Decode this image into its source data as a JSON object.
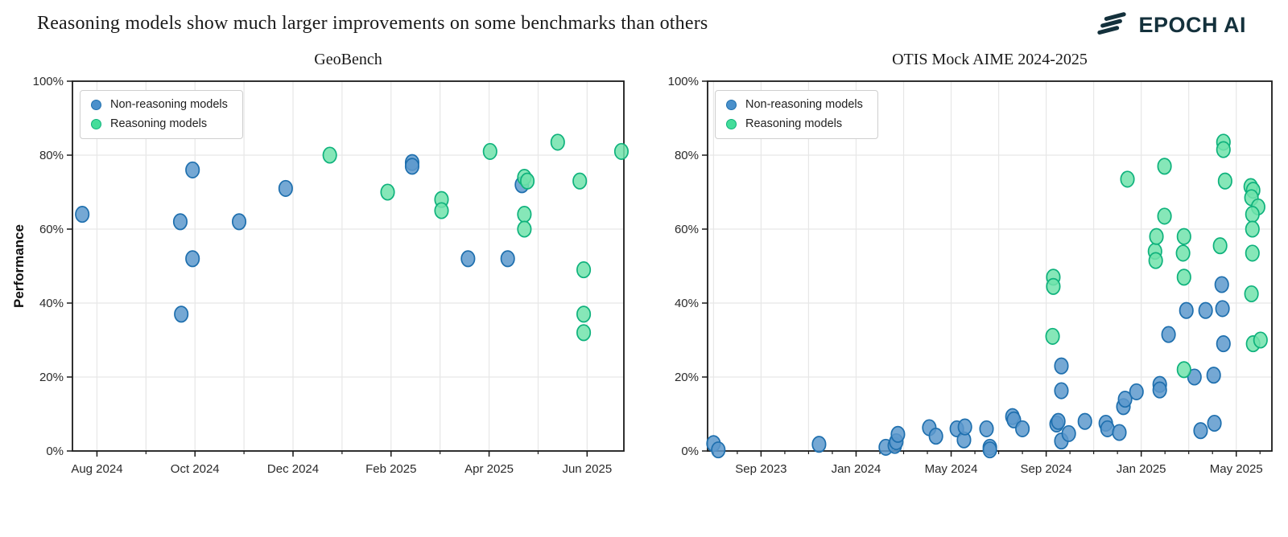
{
  "header": {
    "title": "Reasoning models show much larger improvements on some benchmarks than others",
    "logo_text": "EPOCH AI",
    "logo_icon": "epoch-slashes-icon",
    "logo_color": "#14313c"
  },
  "legend": {
    "non_reasoning_label": "Non-reasoning models",
    "reasoning_label": "Reasoning models"
  },
  "colors": {
    "non_reasoning_fill": "#5d99cd",
    "non_reasoning_edge": "#1e6fae",
    "reasoning_fill": "#71e3ab",
    "reasoning_edge": "#0eb27c",
    "legend_non_reasoning_dot": "#4a90cb",
    "legend_reasoning_dot": "#44dd9a",
    "grid": "#e7e7e7",
    "axis": "#1a1a1a",
    "tick_label": "#2a2a2a"
  },
  "chart_data": [
    {
      "type": "scatter",
      "title": "GeoBench",
      "ylabel": "Performance",
      "ylim": [
        0,
        100
      ],
      "grid": true,
      "legend_position": "upper left",
      "x_unit": "months since 2024-08-01 (fractional = day within month)",
      "xlim": [
        -0.5,
        10.75
      ],
      "y_ticks": [
        {
          "v": 0,
          "label": "0%"
        },
        {
          "v": 20,
          "label": "20%"
        },
        {
          "v": 40,
          "label": "40%"
        },
        {
          "v": 60,
          "label": "60%"
        },
        {
          "v": 80,
          "label": "80%"
        },
        {
          "v": 100,
          "label": "100%"
        }
      ],
      "x_ticks": [
        {
          "m": 0,
          "label": "Aug 2024"
        },
        {
          "m": 2,
          "label": "Oct 2024"
        },
        {
          "m": 4,
          "label": "Dec 2024"
        },
        {
          "m": 6,
          "label": "Feb 2025"
        },
        {
          "m": 8,
          "label": "Apr 2025"
        },
        {
          "m": 10,
          "label": "Jun 2025"
        }
      ],
      "series": [
        {
          "name": "Non-reasoning models",
          "points": [
            [
              -0.3,
              64
            ],
            [
              1.7,
              62
            ],
            [
              1.72,
              37
            ],
            [
              1.95,
              76
            ],
            [
              1.95,
              52
            ],
            [
              2.9,
              62
            ],
            [
              3.85,
              71
            ],
            [
              6.43,
              78
            ],
            [
              6.43,
              77
            ],
            [
              7.57,
              52
            ],
            [
              8.38,
              52
            ],
            [
              8.67,
              72
            ]
          ]
        },
        {
          "name": "Reasoning models",
          "points": [
            [
              4.75,
              80
            ],
            [
              5.93,
              70
            ],
            [
              7.03,
              68
            ],
            [
              7.03,
              65
            ],
            [
              8.02,
              81
            ],
            [
              8.72,
              74
            ],
            [
              8.78,
              73
            ],
            [
              8.72,
              64
            ],
            [
              8.72,
              60
            ],
            [
              9.4,
              83.5
            ],
            [
              9.85,
              73
            ],
            [
              9.93,
              49
            ],
            [
              9.93,
              37
            ],
            [
              9.93,
              32
            ],
            [
              10.7,
              81
            ]
          ]
        }
      ]
    },
    {
      "type": "scatter",
      "title": "OTIS Mock AIME 2024-2025",
      "ylabel": "",
      "ylim": [
        0,
        100
      ],
      "grid": true,
      "legend_position": "upper left",
      "x_unit": "months since 2023-09-01 (fractional = day within month)",
      "xlim": [
        -2.25,
        21.5
      ],
      "y_ticks": [
        {
          "v": 0,
          "label": "0%"
        },
        {
          "v": 20,
          "label": "20%"
        },
        {
          "v": 40,
          "label": "40%"
        },
        {
          "v": 60,
          "label": "60%"
        },
        {
          "v": 80,
          "label": "80%"
        },
        {
          "v": 100,
          "label": "100%"
        }
      ],
      "x_ticks": [
        {
          "m": 0,
          "label": "Sep 2023"
        },
        {
          "m": 4,
          "label": "Jan 2024"
        },
        {
          "m": 8,
          "label": "May 2024"
        },
        {
          "m": 12,
          "label": "Sep 2024"
        },
        {
          "m": 16,
          "label": "Jan 2025"
        },
        {
          "m": 20,
          "label": "May 2025"
        }
      ],
      "series": [
        {
          "name": "Non-reasoning models",
          "points": [
            [
              -2.0,
              2
            ],
            [
              -1.8,
              0.3
            ],
            [
              2.44,
              1.8
            ],
            [
              5.25,
              1
            ],
            [
              5.63,
              1.5
            ],
            [
              5.69,
              2.5
            ],
            [
              5.76,
              4.5
            ],
            [
              7.08,
              6.3
            ],
            [
              7.36,
              4
            ],
            [
              8.24,
              6
            ],
            [
              8.54,
              3
            ],
            [
              8.58,
              6.5
            ],
            [
              9.49,
              6
            ],
            [
              9.63,
              1
            ],
            [
              9.63,
              0.3
            ],
            [
              10.58,
              9.3
            ],
            [
              10.64,
              8.4
            ],
            [
              11.0,
              6
            ],
            [
              12.44,
              7.3
            ],
            [
              12.51,
              8
            ],
            [
              12.64,
              23
            ],
            [
              12.64,
              16.3
            ],
            [
              12.64,
              2.7
            ],
            [
              12.95,
              4.7
            ],
            [
              13.63,
              8
            ],
            [
              14.51,
              7.5
            ],
            [
              14.58,
              6
            ],
            [
              15.08,
              5
            ],
            [
              15.25,
              12
            ],
            [
              15.32,
              14
            ],
            [
              15.8,
              16
            ],
            [
              16.78,
              18
            ],
            [
              16.78,
              16.5
            ],
            [
              17.15,
              31.5
            ],
            [
              17.9,
              38
            ],
            [
              18.24,
              20
            ],
            [
              18.5,
              5.5
            ],
            [
              18.71,
              38
            ],
            [
              19.05,
              20.5
            ],
            [
              19.08,
              7.5
            ],
            [
              19.39,
              45
            ],
            [
              19.42,
              38.5
            ],
            [
              19.46,
              29
            ]
          ]
        },
        {
          "name": "Reasoning models",
          "points": [
            [
              12.27,
              31
            ],
            [
              12.3,
              47
            ],
            [
              12.3,
              44.5
            ],
            [
              15.42,
              73.5
            ],
            [
              16.58,
              54
            ],
            [
              16.61,
              51.5
            ],
            [
              16.64,
              58
            ],
            [
              16.98,
              77
            ],
            [
              16.98,
              63.5
            ],
            [
              17.76,
              53.5
            ],
            [
              17.8,
              58
            ],
            [
              17.8,
              47
            ],
            [
              17.8,
              22
            ],
            [
              19.32,
              55.5
            ],
            [
              19.46,
              83.5
            ],
            [
              19.46,
              81.5
            ],
            [
              19.53,
              73
            ],
            [
              20.61,
              71.5
            ],
            [
              20.71,
              70.5
            ],
            [
              20.64,
              68.5
            ],
            [
              20.92,
              66
            ],
            [
              20.68,
              64
            ],
            [
              20.68,
              60
            ],
            [
              20.68,
              53.5
            ],
            [
              20.64,
              42.5
            ],
            [
              20.71,
              29
            ],
            [
              21.02,
              30
            ]
          ]
        }
      ]
    }
  ]
}
